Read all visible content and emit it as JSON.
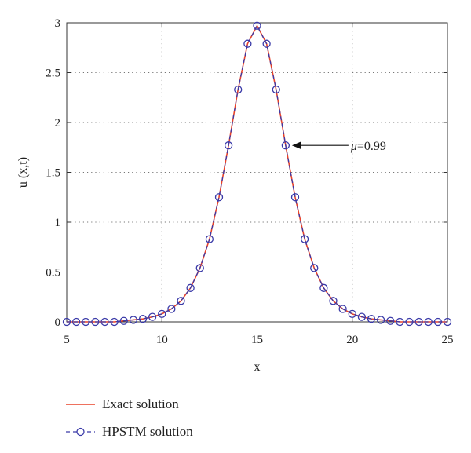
{
  "chart_data": {
    "type": "line",
    "xlabel": "x",
    "ylabel": "u (x,t)",
    "xlim": [
      5,
      25
    ],
    "ylim": [
      0,
      3
    ],
    "xticks": [
      "5",
      "10",
      "15",
      "20",
      "25"
    ],
    "yticks": [
      "0",
      "0.5",
      "1",
      "1.5",
      "2",
      "2.5",
      "3"
    ],
    "grid": true,
    "legend_position": "bottom-left, below plot",
    "annotation": {
      "text_symbol": "μ",
      "text_value": "=0.99",
      "x": 16.5,
      "y": 1.77
    },
    "series": [
      {
        "name": "Exact solution",
        "style": "solid",
        "color": "#e8432a",
        "x": [
          5,
          5.5,
          6,
          6.5,
          7,
          7.5,
          8,
          8.5,
          9,
          9.5,
          10,
          10.5,
          11,
          11.5,
          12,
          12.5,
          13,
          13.5,
          14,
          14.5,
          15,
          15.5,
          16,
          16.5,
          17,
          17.5,
          18,
          18.5,
          19,
          19.5,
          20,
          20.5,
          21,
          21.5,
          22,
          22.5,
          23,
          23.5,
          24,
          24.5,
          25
        ],
        "y": [
          0.0,
          0.0,
          0.0,
          0.0,
          0.0,
          0.0,
          0.01,
          0.02,
          0.03,
          0.05,
          0.08,
          0.13,
          0.21,
          0.34,
          0.54,
          0.83,
          1.25,
          1.77,
          2.33,
          2.79,
          2.97,
          2.79,
          2.33,
          1.77,
          1.25,
          0.83,
          0.54,
          0.34,
          0.21,
          0.13,
          0.08,
          0.05,
          0.03,
          0.02,
          0.01,
          0.0,
          0.0,
          0.0,
          0.0,
          0.0,
          0.0
        ]
      },
      {
        "name": "HPSTM solution",
        "style": "dashed-circle",
        "color": "#3a3aa8",
        "x": [
          5,
          5.5,
          6,
          6.5,
          7,
          7.5,
          8,
          8.5,
          9,
          9.5,
          10,
          10.5,
          11,
          11.5,
          12,
          12.5,
          13,
          13.5,
          14,
          14.5,
          15,
          15.5,
          16,
          16.5,
          17,
          17.5,
          18,
          18.5,
          19,
          19.5,
          20,
          20.5,
          21,
          21.5,
          22,
          22.5,
          23,
          23.5,
          24,
          24.5,
          25
        ],
        "y": [
          0.0,
          0.0,
          0.0,
          0.0,
          0.0,
          0.0,
          0.01,
          0.02,
          0.03,
          0.05,
          0.08,
          0.13,
          0.21,
          0.34,
          0.54,
          0.83,
          1.25,
          1.77,
          2.33,
          2.79,
          2.97,
          2.79,
          2.33,
          1.77,
          1.25,
          0.83,
          0.54,
          0.34,
          0.21,
          0.13,
          0.08,
          0.05,
          0.03,
          0.02,
          0.01,
          0.0,
          0.0,
          0.0,
          0.0,
          0.0,
          0.0
        ]
      }
    ]
  }
}
